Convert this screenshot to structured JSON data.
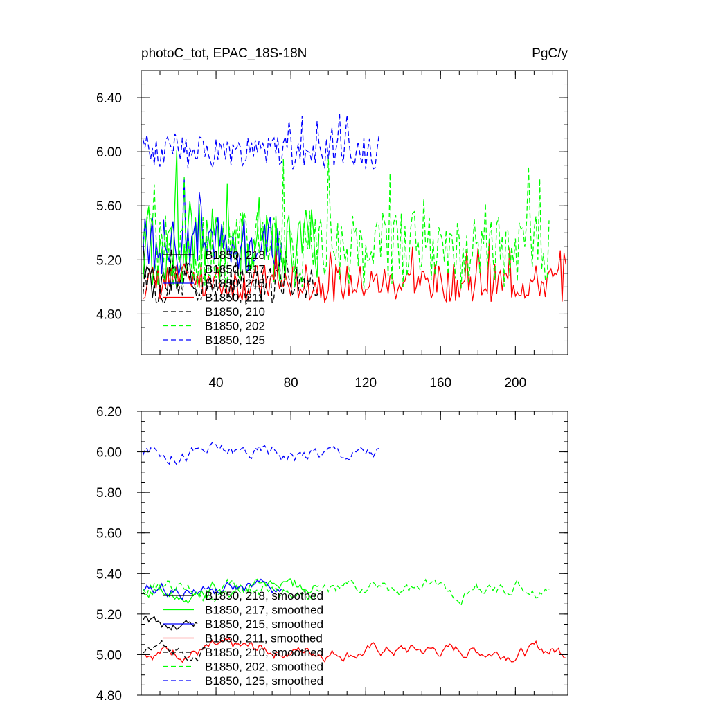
{
  "colors": {
    "black": "#000000",
    "green": "#00ff00",
    "blue": "#0000ff",
    "red": "#ff0000"
  },
  "chart_data": [
    {
      "type": "line",
      "title": "photoC_tot, EPAC_18S-18N",
      "units": "PgC/y",
      "xlim": [
        0,
        228
      ],
      "ylim": [
        4.5,
        6.6
      ],
      "xticks": [
        40,
        80,
        120,
        160,
        200
      ],
      "yticks": [
        4.8,
        5.2,
        5.6,
        6.0,
        6.4
      ],
      "ytick_labels": [
        "4.80",
        "5.20",
        "5.60",
        "6.00",
        "6.40"
      ],
      "legend_position": "lower-left",
      "series": [
        {
          "name": "B1850, 218",
          "color": "#000000",
          "dash": "solid",
          "x_end": 30,
          "mean": 5.05,
          "amp": 0.14,
          "seed": 218
        },
        {
          "name": "B1850, 217",
          "color": "#00ff00",
          "dash": "solid",
          "x_end": 95,
          "mean": 5.32,
          "amp": 0.32,
          "seed": 217
        },
        {
          "name": "B1850, 215",
          "color": "#0000ff",
          "dash": "solid",
          "x_end": 75,
          "mean": 5.3,
          "amp": 0.22,
          "seed": 215
        },
        {
          "name": "B1850, 211",
          "color": "#ff0000",
          "dash": "solid",
          "x_end": 227,
          "mean": 5.03,
          "amp": 0.14,
          "seed": 211
        },
        {
          "name": "B1850, 210",
          "color": "#000000",
          "dash": "dashed",
          "x_end": 95,
          "mean": 5.02,
          "amp": 0.15,
          "seed": 210
        },
        {
          "name": "B1850, 202",
          "color": "#00ff00",
          "dash": "dashed",
          "x_end": 218,
          "mean": 5.28,
          "amp": 0.3,
          "seed": 202
        },
        {
          "name": "B1850, 125",
          "color": "#0000ff",
          "dash": "dashed",
          "x_end": 127,
          "mean": 6.0,
          "amp": 0.13,
          "seed": 125
        }
      ]
    },
    {
      "type": "line",
      "xlim": [
        0,
        228
      ],
      "ylim": [
        4.8,
        6.2
      ],
      "yticks": [
        4.8,
        5.0,
        5.2,
        5.4,
        5.6,
        5.8,
        6.0,
        6.2
      ],
      "ytick_labels": [
        "4.80",
        "5.00",
        "5.20",
        "5.40",
        "5.60",
        "5.80",
        "6.00",
        "6.20"
      ],
      "legend_position": "lower-left",
      "series": [
        {
          "name": "B1850, 218, smoothed",
          "color": "#000000",
          "dash": "solid",
          "x_end": 30,
          "mean": 5.15,
          "amp": 0.05,
          "seed": 218
        },
        {
          "name": "B1850, 217, smoothed",
          "color": "#00ff00",
          "dash": "solid",
          "x_end": 95,
          "mean": 5.33,
          "amp": 0.06,
          "seed": 217
        },
        {
          "name": "B1850, 215, smoothed",
          "color": "#0000ff",
          "dash": "solid",
          "x_end": 75,
          "mean": 5.32,
          "amp": 0.05,
          "seed": 215
        },
        {
          "name": "B1850, 211, smoothed",
          "color": "#ff0000",
          "dash": "solid",
          "x_end": 227,
          "mean": 5.02,
          "amp": 0.05,
          "seed": 211
        },
        {
          "name": "B1850, 210, smoothed",
          "color": "#000000",
          "dash": "dashed",
          "x_end": 35,
          "mean": 5.02,
          "amp": 0.05,
          "seed": 210
        },
        {
          "name": "B1850, 202, smoothed",
          "color": "#00ff00",
          "dash": "dashed",
          "x_end": 218,
          "mean": 5.32,
          "amp": 0.06,
          "seed": 202
        },
        {
          "name": "B1850, 125, smoothed",
          "color": "#0000ff",
          "dash": "dashed",
          "x_end": 127,
          "mean": 6.0,
          "amp": 0.06,
          "seed": 125
        }
      ]
    }
  ]
}
